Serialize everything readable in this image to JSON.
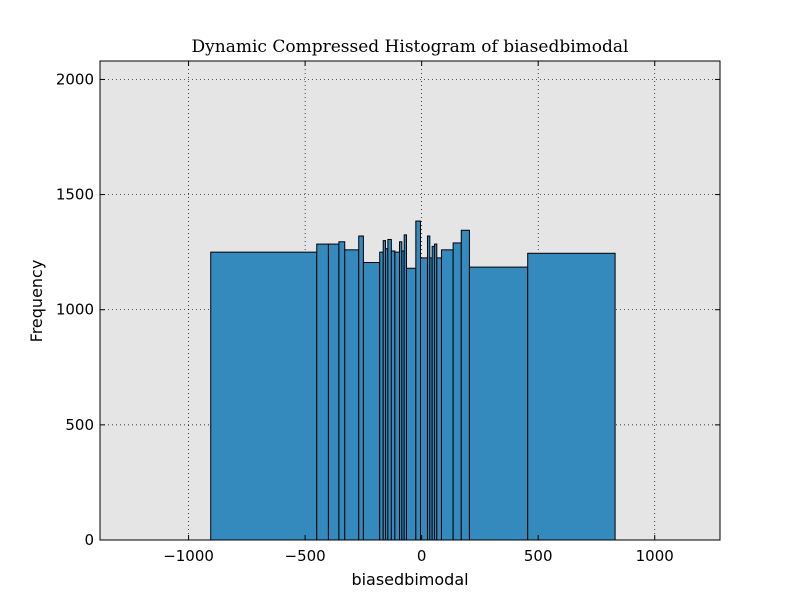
{
  "chart_data": {
    "type": "bar",
    "title": "Dynamic Compressed Histogram of biasedbimodal",
    "xlabel": "biasedbimodal",
    "ylabel": "Frequency",
    "xlim": [
      -1380,
      1280
    ],
    "ylim": [
      0,
      2080
    ],
    "grid": true,
    "x_ticks": [
      {
        "value": -1000,
        "label": "−1000"
      },
      {
        "value": -500,
        "label": "−500"
      },
      {
        "value": 0,
        "label": "0"
      },
      {
        "value": 500,
        "label": "500"
      },
      {
        "value": 1000,
        "label": "1000"
      }
    ],
    "y_ticks": [
      {
        "value": 0,
        "label": "0"
      },
      {
        "value": 500,
        "label": "500"
      },
      {
        "value": 1000,
        "label": "1000"
      },
      {
        "value": 1500,
        "label": "1500"
      },
      {
        "value": 2000,
        "label": "2000"
      }
    ],
    "bar_color": "#348abd",
    "bins": [
      {
        "x0": -905,
        "x1": -450,
        "height": 1250
      },
      {
        "x0": -450,
        "x1": -400,
        "height": 1285
      },
      {
        "x0": -400,
        "x1": -355,
        "height": 1285
      },
      {
        "x0": -355,
        "x1": -330,
        "height": 1295
      },
      {
        "x0": -330,
        "x1": -270,
        "height": 1260
      },
      {
        "x0": -270,
        "x1": -250,
        "height": 1320
      },
      {
        "x0": -250,
        "x1": -180,
        "height": 1205
      },
      {
        "x0": -180,
        "x1": -165,
        "height": 1250
      },
      {
        "x0": -165,
        "x1": -155,
        "height": 1300
      },
      {
        "x0": -155,
        "x1": -145,
        "height": 1265
      },
      {
        "x0": -145,
        "x1": -130,
        "height": 1305
      },
      {
        "x0": -130,
        "x1": -115,
        "height": 1255
      },
      {
        "x0": -115,
        "x1": -95,
        "height": 1250
      },
      {
        "x0": -95,
        "x1": -85,
        "height": 1295
      },
      {
        "x0": -85,
        "x1": -75,
        "height": 1255
      },
      {
        "x0": -75,
        "x1": -65,
        "height": 1325
      },
      {
        "x0": -65,
        "x1": -25,
        "height": 1180
      },
      {
        "x0": -25,
        "x1": -5,
        "height": 1385
      },
      {
        "x0": -5,
        "x1": 25,
        "height": 1225
      },
      {
        "x0": 25,
        "x1": 35,
        "height": 1320
      },
      {
        "x0": 35,
        "x1": 45,
        "height": 1225
      },
      {
        "x0": 45,
        "x1": 55,
        "height": 1275
      },
      {
        "x0": 55,
        "x1": 65,
        "height": 1285
      },
      {
        "x0": 65,
        "x1": 85,
        "height": 1225
      },
      {
        "x0": 85,
        "x1": 135,
        "height": 1260
      },
      {
        "x0": 135,
        "x1": 170,
        "height": 1290
      },
      {
        "x0": 170,
        "x1": 205,
        "height": 1345
      },
      {
        "x0": 205,
        "x1": 455,
        "height": 1185
      },
      {
        "x0": 455,
        "x1": 830,
        "height": 1245
      }
    ]
  }
}
